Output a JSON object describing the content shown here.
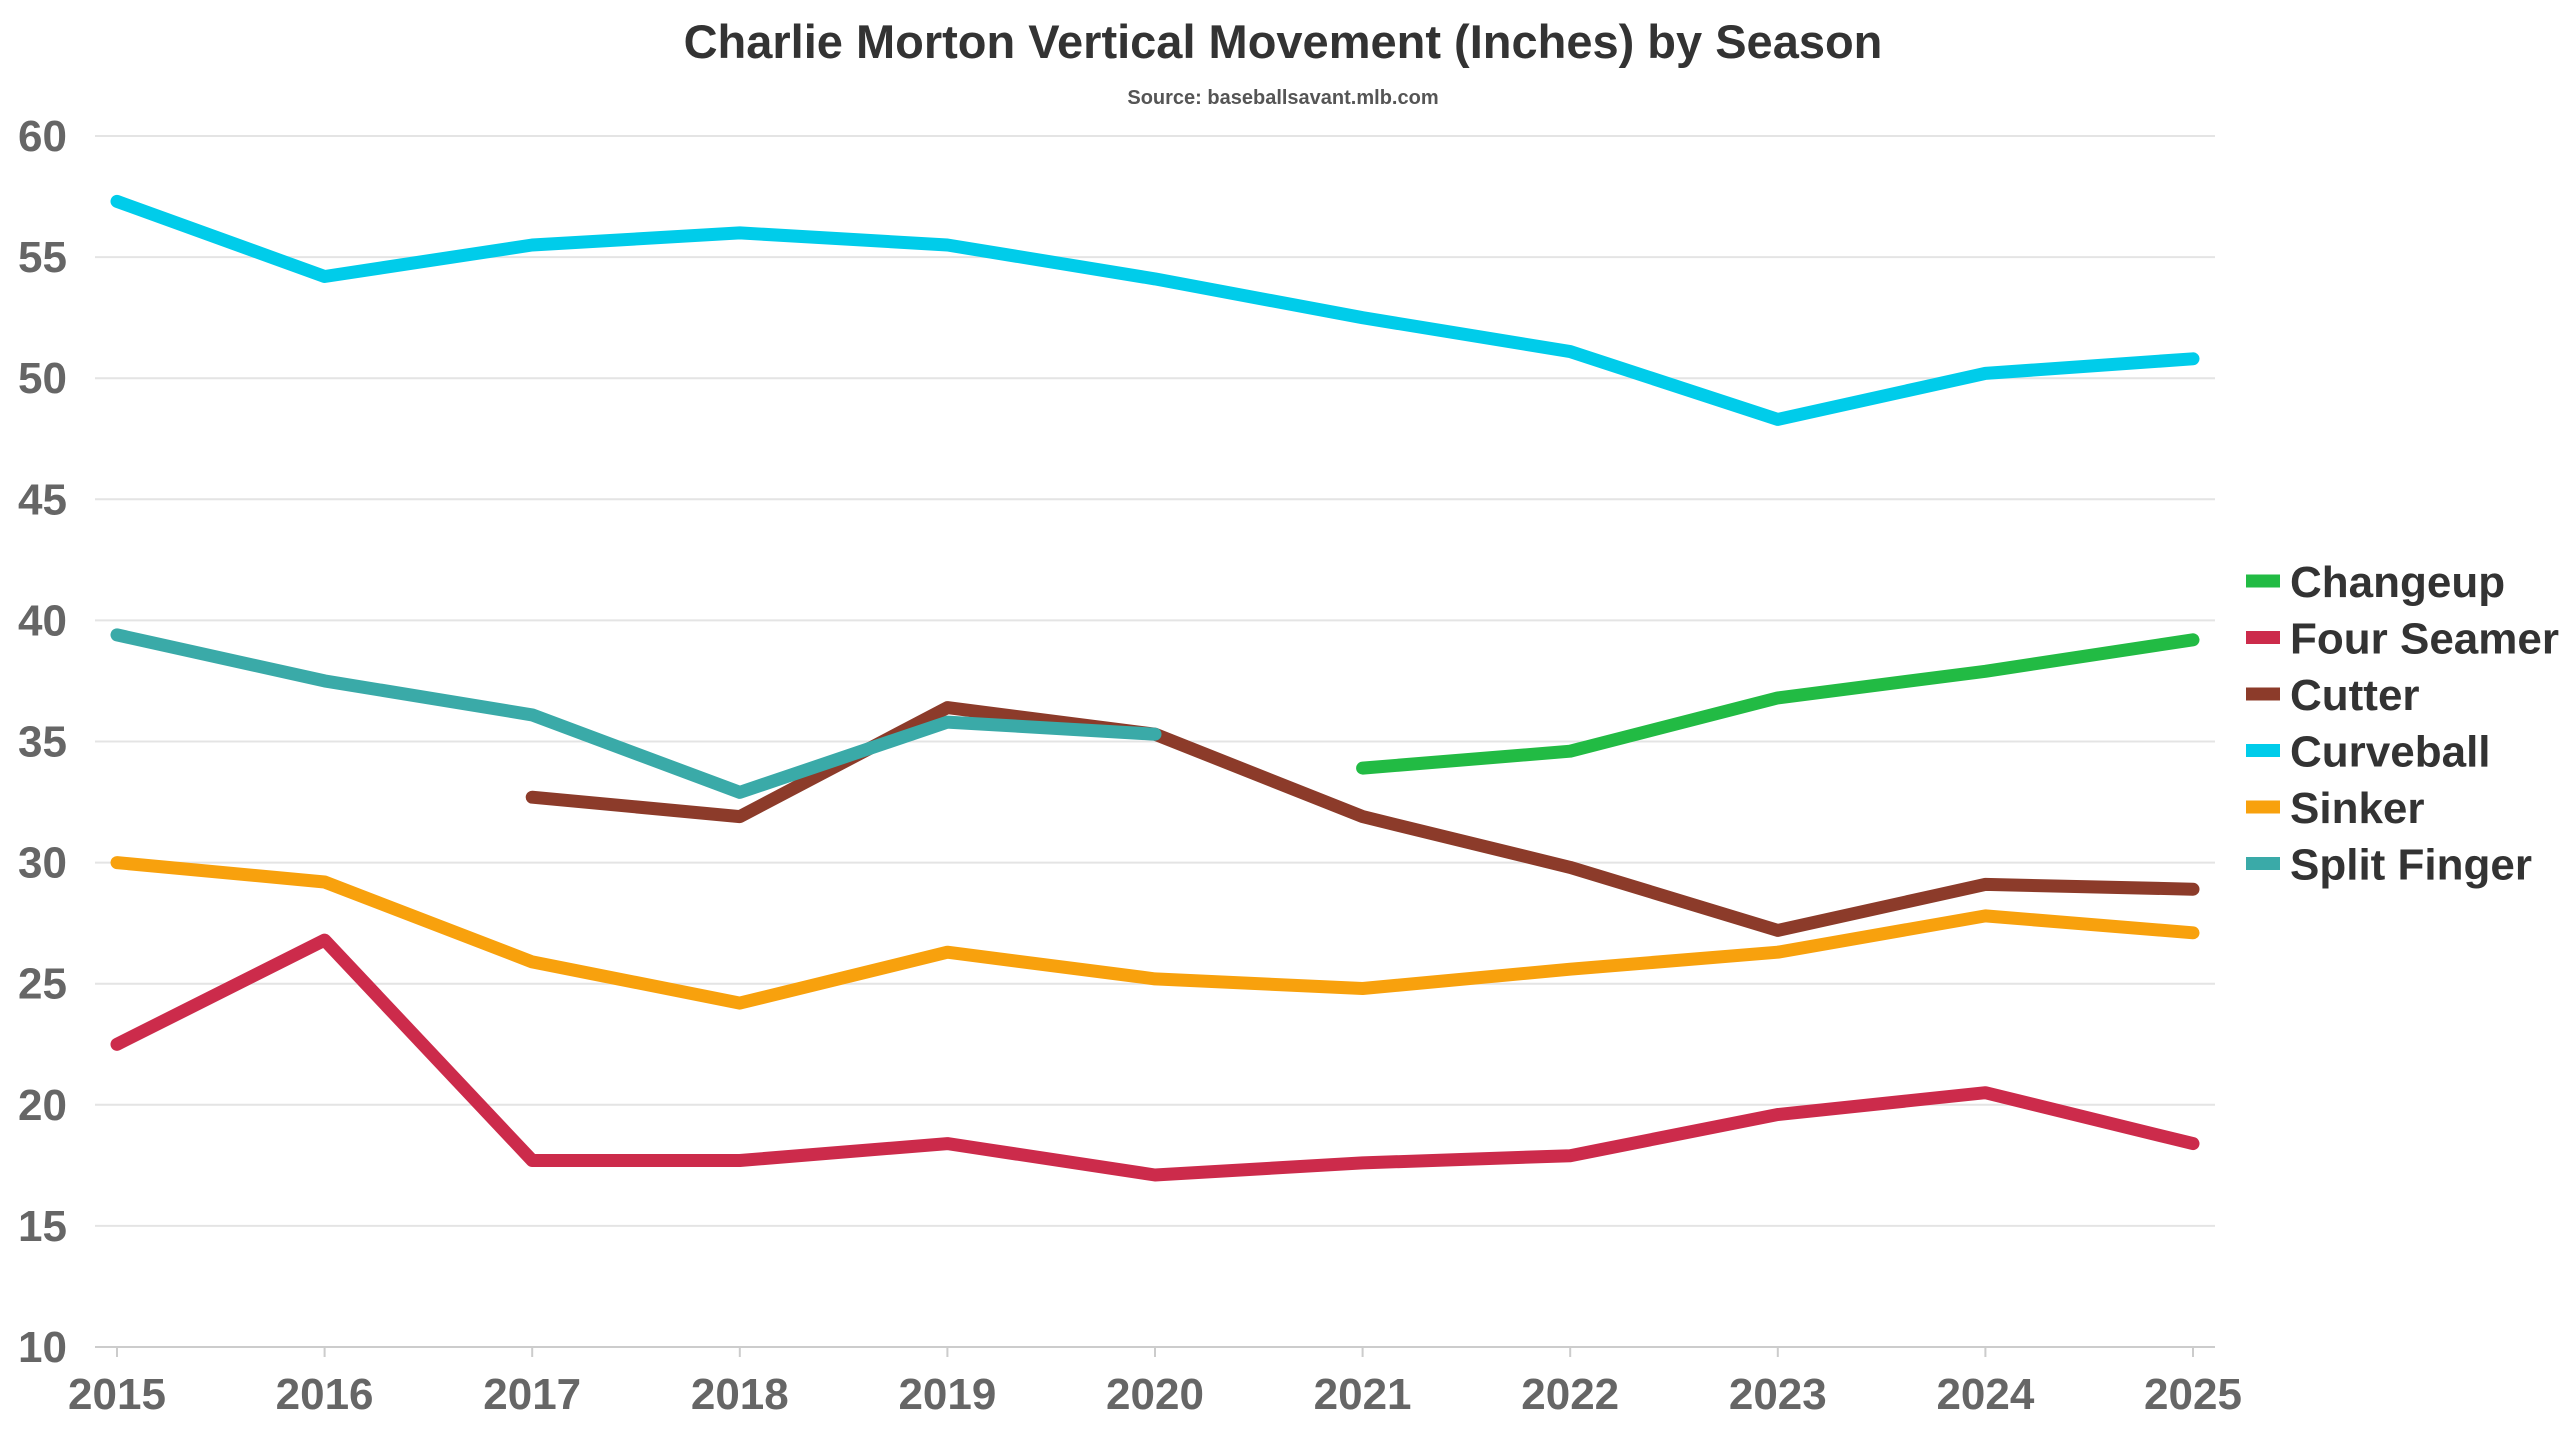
{
  "chart_data": {
    "type": "line",
    "title": "Charlie Morton Vertical Movement (Inches) by Season",
    "subtitle": "Source: baseballsavant.mlb.com",
    "xlabel": "",
    "ylabel": "",
    "x": [
      2015,
      2016,
      2017,
      2018,
      2019,
      2020,
      2021,
      2022,
      2023,
      2024,
      2025
    ],
    "x_tick_labels": [
      "2015",
      "2016",
      "2017",
      "2018",
      "2019",
      "2020",
      "2021",
      "2022",
      "2023",
      "2024",
      "2025"
    ],
    "ylim": [
      10,
      60
    ],
    "y_ticks": [
      10,
      15,
      20,
      25,
      30,
      35,
      40,
      45,
      50,
      55,
      60
    ],
    "y_tick_labels": [
      "10",
      "15",
      "20",
      "25",
      "30",
      "35",
      "40",
      "45",
      "50",
      "55",
      "60"
    ],
    "grid": true,
    "legend_position": "right",
    "series": [
      {
        "name": "Changeup",
        "color": "#22bb44",
        "values": [
          null,
          null,
          null,
          null,
          null,
          null,
          33.9,
          34.6,
          36.8,
          37.9,
          39.2
        ]
      },
      {
        "name": "Four Seamer",
        "color": "#cc2b4b",
        "values": [
          22.5,
          26.8,
          17.7,
          17.7,
          18.4,
          17.1,
          17.6,
          17.9,
          19.6,
          20.5,
          18.4
        ]
      },
      {
        "name": "Cutter",
        "color": "#8c3b2a",
        "values": [
          null,
          null,
          32.7,
          31.9,
          36.4,
          35.3,
          31.9,
          29.8,
          27.2,
          29.1,
          28.9
        ]
      },
      {
        "name": "Curveball",
        "color": "#00ccea",
        "values": [
          57.3,
          54.2,
          55.5,
          56.0,
          55.5,
          54.1,
          52.5,
          51.1,
          48.3,
          50.2,
          50.8
        ]
      },
      {
        "name": "Sinker",
        "color": "#f8a10d",
        "values": [
          30.0,
          29.2,
          25.9,
          24.2,
          26.3,
          25.2,
          24.8,
          25.6,
          26.3,
          27.8,
          27.1
        ]
      },
      {
        "name": "Split Finger",
        "color": "#3aaaa8",
        "values": [
          39.4,
          37.5,
          36.1,
          32.9,
          35.8,
          35.3,
          null,
          null,
          null,
          null,
          null
        ]
      }
    ]
  }
}
